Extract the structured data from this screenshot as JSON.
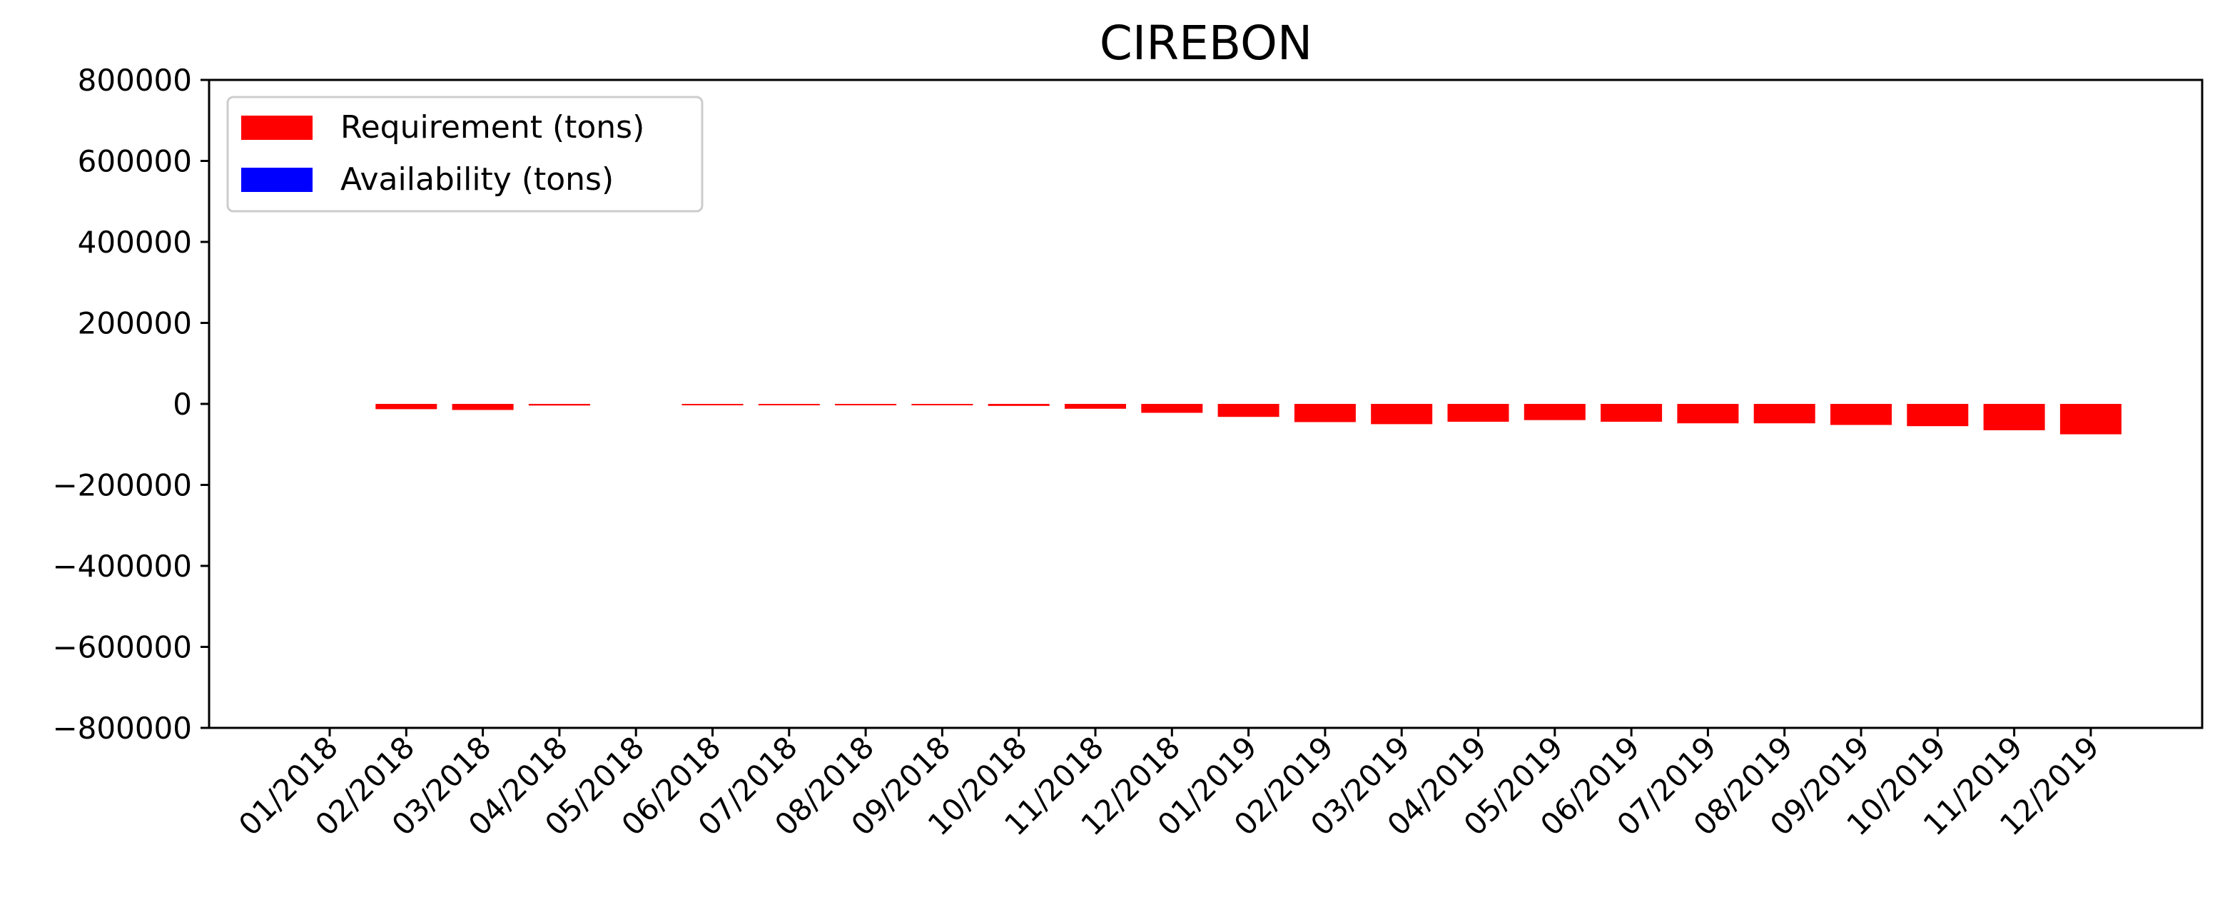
{
  "colors": {
    "requirement": "#ff0000",
    "availability": "#0000ff",
    "axis": "#000000",
    "background": "#ffffff"
  },
  "chart_data": {
    "type": "bar",
    "title": "CIREBON",
    "xlabel": "",
    "ylabel": "",
    "ylim": [
      -800000,
      800000
    ],
    "yticks": [
      "800000",
      "600000",
      "400000",
      "200000",
      "0",
      "−200000",
      "−400000",
      "−600000",
      "−800000"
    ],
    "ytick_values": [
      800000,
      600000,
      400000,
      200000,
      0,
      -200000,
      -400000,
      -600000,
      -800000
    ],
    "categories": [
      "01/2018",
      "02/2018",
      "03/2018",
      "04/2018",
      "05/2018",
      "06/2018",
      "07/2018",
      "08/2018",
      "09/2018",
      "10/2018",
      "11/2018",
      "12/2018",
      "01/2019",
      "02/2019",
      "03/2019",
      "04/2019",
      "05/2019",
      "06/2019",
      "07/2019",
      "08/2019",
      "09/2019",
      "10/2019",
      "11/2019",
      "12/2019"
    ],
    "grid": false,
    "legend_position": "top-left",
    "series": [
      {
        "name": "Requirement (tons)",
        "color": "#ff0000",
        "values": [
          0,
          -13000,
          -15000,
          -4000,
          0,
          -2000,
          -3000,
          -2000,
          -3000,
          -5000,
          -12000,
          -22000,
          -32000,
          -45000,
          -50000,
          -44000,
          -40000,
          -44000,
          -48000,
          -48000,
          -52000,
          -55000,
          -65000,
          -75000
        ]
      },
      {
        "name": "Availability (tons)",
        "color": "#0000ff",
        "values": [
          0,
          0,
          0,
          0,
          0,
          0,
          0,
          0,
          0,
          0,
          0,
          0,
          0,
          0,
          0,
          0,
          0,
          0,
          0,
          0,
          0,
          0,
          0,
          0
        ]
      }
    ]
  }
}
